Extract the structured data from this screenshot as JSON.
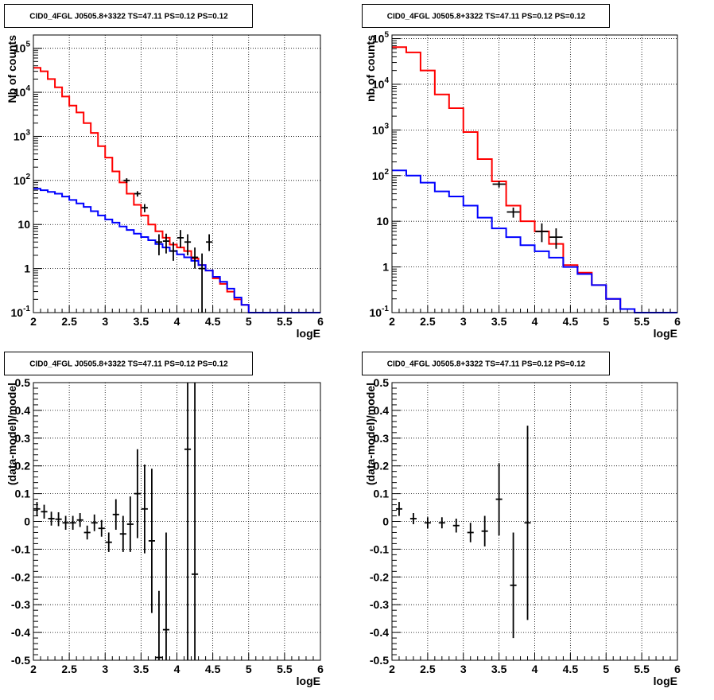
{
  "chart_data": [
    {
      "type": "line",
      "title": "CID0_4FGL J0505.8+3322 TS=47.11 PS=0.12 PS=0.12",
      "xlabel": "logE",
      "ylabel": "Nb of counts",
      "yscale": "log",
      "xlim": [
        2,
        6
      ],
      "ylim": [
        0.1,
        200000
      ],
      "grid": true,
      "xticks": [
        "2",
        "2.5",
        "3",
        "3.5",
        "4",
        "4.5",
        "5",
        "5.5",
        "6"
      ],
      "yticks": [
        {
          "v": 0.1,
          "base": "10",
          "exp": "-1"
        },
        {
          "v": 1,
          "label": "1"
        },
        {
          "v": 10,
          "label": "10"
        },
        {
          "v": 100,
          "base": "10",
          "exp": "2"
        },
        {
          "v": 1000,
          "base": "10",
          "exp": "3"
        },
        {
          "v": 10000,
          "base": "10",
          "exp": "4"
        },
        {
          "v": 100000,
          "base": "10",
          "exp": "5"
        }
      ],
      "bin_edges": [
        2.0,
        2.1,
        2.2,
        2.3,
        2.4,
        2.5,
        2.6,
        2.7,
        2.8,
        2.9,
        3.0,
        3.1,
        3.2,
        3.3,
        3.4,
        3.5,
        3.6,
        3.7,
        3.8,
        3.9,
        4.0,
        4.1,
        4.2,
        4.3,
        4.4,
        4.5,
        4.6,
        4.7,
        4.8,
        4.9,
        5.0,
        5.1,
        5.2,
        5.3,
        5.4,
        5.5,
        5.6,
        5.7,
        5.8,
        5.9,
        6.0
      ],
      "series": [
        {
          "color": "#ff0000",
          "values": [
            36000,
            30000,
            20000,
            13000,
            8000,
            5000,
            3500,
            2000,
            1200,
            600,
            330,
            160,
            90,
            50,
            28,
            16,
            10,
            7,
            5,
            3.5,
            3,
            2.5,
            1.7,
            1.2,
            0.9,
            0.6,
            0.45,
            0.3,
            0.2,
            0.15,
            0.1,
            0.1,
            0.1,
            0.1,
            0.1,
            0.1,
            0.1,
            0.1,
            0.1,
            0.1
          ]
        },
        {
          "color": "#0000ff",
          "values": [
            65,
            60,
            55,
            50,
            43,
            36,
            30,
            25,
            20,
            16,
            13,
            11,
            9,
            7.5,
            6.2,
            5.2,
            4.4,
            3.6,
            3,
            2.5,
            2.1,
            1.8,
            1.5,
            1.2,
            0.9,
            0.65,
            0.5,
            0.35,
            0.22,
            0.15,
            0.1,
            0.1,
            0.1,
            0.1,
            0.1,
            0.1,
            0.1,
            0.1,
            0.1,
            0.1
          ]
        }
      ],
      "points": [
        {
          "x": 3.3,
          "y": 100,
          "lo": 88,
          "hi": 112
        },
        {
          "x": 3.45,
          "y": 50,
          "lo": 43,
          "hi": 57
        },
        {
          "x": 3.55,
          "y": 24,
          "lo": 19,
          "hi": 29
        },
        {
          "x": 3.75,
          "y": 4,
          "lo": 2,
          "hi": 6
        },
        {
          "x": 3.85,
          "y": 4.2,
          "lo": 2.2,
          "hi": 6.2
        },
        {
          "x": 3.95,
          "y": 2.5,
          "lo": 1.5,
          "hi": 4
        },
        {
          "x": 4.05,
          "y": 5,
          "lo": 3,
          "hi": 7.5
        },
        {
          "x": 4.15,
          "y": 4,
          "lo": 2,
          "hi": 6
        },
        {
          "x": 4.25,
          "y": 1.8,
          "lo": 1,
          "hi": 3
        },
        {
          "x": 4.35,
          "y": 1,
          "lo": 0.1,
          "hi": 2.2
        },
        {
          "x": 4.45,
          "y": 4,
          "lo": 2.5,
          "hi": 6
        }
      ]
    },
    {
      "type": "line",
      "title": "CID0_4FGL J0505.8+3322 TS=47.11 PS=0.12 PS=0.12",
      "xlabel": "logE",
      "ylabel": "nb of counts",
      "yscale": "log",
      "xlim": [
        2,
        6
      ],
      "ylim": [
        0.1,
        120000
      ],
      "grid": true,
      "xticks": [
        "2",
        "2.5",
        "3",
        "3.5",
        "4",
        "4.5",
        "5",
        "5.5",
        "6"
      ],
      "yticks": [
        {
          "v": 0.1,
          "base": "10",
          "exp": "-1"
        },
        {
          "v": 1,
          "label": "1"
        },
        {
          "v": 10,
          "label": "10"
        },
        {
          "v": 100,
          "base": "10",
          "exp": "2"
        },
        {
          "v": 1000,
          "base": "10",
          "exp": "3"
        },
        {
          "v": 10000,
          "base": "10",
          "exp": "4"
        },
        {
          "v": 100000,
          "base": "10",
          "exp": "5"
        }
      ],
      "bin_edges": [
        2.0,
        2.2,
        2.4,
        2.6,
        2.8,
        3.0,
        3.2,
        3.4,
        3.6,
        3.8,
        4.0,
        4.2,
        4.4,
        4.6,
        4.8,
        5.0,
        5.2,
        5.4,
        5.6,
        5.8,
        6.0
      ],
      "series": [
        {
          "color": "#ff0000",
          "values": [
            65000,
            50000,
            20000,
            6000,
            3000,
            900,
            230,
            75,
            22,
            10,
            6,
            3.2,
            1.1,
            0.75,
            0.4,
            0.2,
            0.12,
            0.1,
            0.1,
            0.1
          ]
        },
        {
          "color": "#0000ff",
          "values": [
            130,
            100,
            70,
            45,
            35,
            22,
            12,
            7,
            4.5,
            3,
            2.2,
            1.6,
            1,
            0.7,
            0.4,
            0.2,
            0.12,
            0.1,
            0.1,
            0.1
          ]
        }
      ],
      "points": [
        {
          "x": 3.5,
          "y": 65,
          "lo": 55,
          "hi": 75
        },
        {
          "x": 3.7,
          "y": 16,
          "lo": 12,
          "hi": 20
        },
        {
          "x": 4.1,
          "y": 6,
          "lo": 3.5,
          "hi": 9
        },
        {
          "x": 4.3,
          "y": 4.5,
          "lo": 2.5,
          "hi": 7
        }
      ]
    },
    {
      "type": "scatter",
      "title": "CID0_4FGL J0505.8+3322 TS=47.11 PS=0.12 PS=0.12",
      "xlabel": "logE",
      "ylabel": "(data-model)/model",
      "xlim": [
        2,
        6
      ],
      "ylim": [
        -0.5,
        0.5
      ],
      "grid": true,
      "xticks": [
        "2",
        "2.5",
        "3",
        "3.5",
        "4",
        "4.5",
        "5",
        "5.5",
        "6"
      ],
      "yticks": [
        "-0.5",
        "-0.4",
        "-0.3",
        "-0.2",
        "-0.1",
        "0",
        "0.1",
        "0.2",
        "0.3",
        "0.4",
        "0.5"
      ],
      "points": [
        {
          "x": 2.05,
          "y": 0.045,
          "err": 0.025
        },
        {
          "x": 2.15,
          "y": 0.035,
          "err": 0.025
        },
        {
          "x": 2.25,
          "y": 0.01,
          "err": 0.025
        },
        {
          "x": 2.35,
          "y": 0.008,
          "err": 0.025
        },
        {
          "x": 2.45,
          "y": -0.005,
          "err": 0.025
        },
        {
          "x": 2.55,
          "y": -0.005,
          "err": 0.025
        },
        {
          "x": 2.65,
          "y": 0.005,
          "err": 0.025
        },
        {
          "x": 2.75,
          "y": -0.04,
          "err": 0.025
        },
        {
          "x": 2.85,
          "y": -0.005,
          "err": 0.03
        },
        {
          "x": 2.95,
          "y": -0.025,
          "err": 0.03
        },
        {
          "x": 3.05,
          "y": -0.075,
          "err": 0.035
        },
        {
          "x": 3.15,
          "y": 0.025,
          "err": 0.055
        },
        {
          "x": 3.25,
          "y": -0.045,
          "err": 0.065
        },
        {
          "x": 3.35,
          "y": -0.01,
          "err": 0.1
        },
        {
          "x": 3.45,
          "y": 0.1,
          "err": 0.16
        },
        {
          "x": 3.55,
          "y": 0.045,
          "err": 0.16
        },
        {
          "x": 3.65,
          "y": -0.07,
          "err": 0.26
        },
        {
          "x": 3.75,
          "y": -0.49,
          "err": 0.24
        },
        {
          "x": 3.85,
          "y": -0.39,
          "err": 0.35
        },
        {
          "x": 4.15,
          "y": 0.26,
          "err": 0.9
        },
        {
          "x": 4.25,
          "y": -0.19,
          "err": 0.7
        }
      ]
    },
    {
      "type": "scatter",
      "title": "CID0_4FGL J0505.8+3322 TS=47.11 PS=0.12 PS=0.12",
      "xlabel": "logE",
      "ylabel": "(data-model)/model",
      "xlim": [
        2,
        6
      ],
      "ylim": [
        -0.5,
        0.5
      ],
      "grid": true,
      "xticks": [
        "2",
        "2.5",
        "3",
        "3.5",
        "4",
        "4.5",
        "5",
        "5.5",
        "6"
      ],
      "yticks": [
        "-0.5",
        "-0.4",
        "-0.3",
        "-0.2",
        "-0.1",
        "0",
        "0.1",
        "0.2",
        "0.3",
        "0.4",
        "0.5"
      ],
      "points": [
        {
          "x": 2.1,
          "y": 0.045,
          "err": 0.025
        },
        {
          "x": 2.3,
          "y": 0.01,
          "err": 0.02
        },
        {
          "x": 2.5,
          "y": -0.005,
          "err": 0.02
        },
        {
          "x": 2.7,
          "y": -0.005,
          "err": 0.02
        },
        {
          "x": 2.9,
          "y": -0.015,
          "err": 0.025
        },
        {
          "x": 3.1,
          "y": -0.04,
          "err": 0.035
        },
        {
          "x": 3.3,
          "y": -0.035,
          "err": 0.055
        },
        {
          "x": 3.5,
          "y": 0.08,
          "err": 0.13
        },
        {
          "x": 3.7,
          "y": -0.23,
          "err": 0.19
        },
        {
          "x": 3.9,
          "y": -0.005,
          "err": 0.35
        }
      ]
    }
  ]
}
